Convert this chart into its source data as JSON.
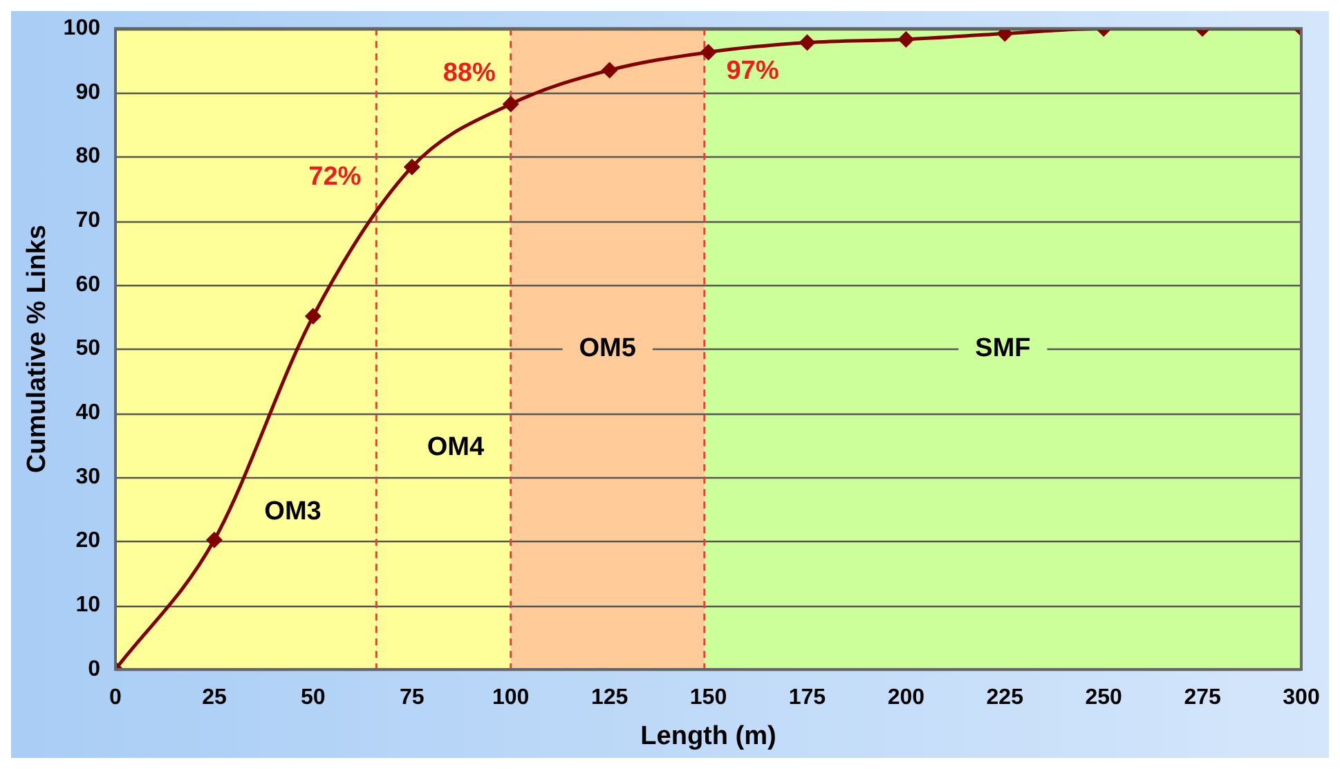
{
  "chart_data": {
    "type": "line",
    "xlabel": "Length (m)",
    "ylabel": "Cumulative % Links",
    "x": [
      0,
      25,
      50,
      75,
      100,
      125,
      150,
      175,
      200,
      225,
      250,
      275,
      300
    ],
    "series": [
      {
        "color": "#800000",
        "values": [
          0,
          20.2,
          55.1,
          78.4,
          88.2,
          93.5,
          96.3,
          97.8,
          98.3,
          99.2,
          100,
          100,
          100
        ]
      }
    ],
    "xlim": [
      0,
      300
    ],
    "xticks": [
      0,
      25,
      50,
      75,
      100,
      125,
      150,
      175,
      200,
      225,
      250,
      275,
      300
    ],
    "ylim": [
      0,
      100
    ],
    "yticks": [
      0,
      10,
      20,
      30,
      40,
      50,
      60,
      70,
      80,
      90,
      100
    ],
    "grid": "y",
    "marker": "diamond",
    "legend": false,
    "bands": [
      {
        "axis": "x",
        "from": 0,
        "to": 66,
        "label": "OM3",
        "color": "#ffff99"
      },
      {
        "axis": "x",
        "from": 66,
        "to": 100,
        "label": "OM4",
        "color": "#ffff99"
      },
      {
        "axis": "x",
        "from": 100,
        "to": 149,
        "label": "OM5",
        "color": "#ffcc99"
      },
      {
        "axis": "x",
        "from": 149,
        "to": 300,
        "label": "SMF",
        "color": "#ccff99"
      }
    ],
    "ref_lines": [
      {
        "axis": "x",
        "value": 66,
        "color": "#ff3333",
        "line_style": "dashed"
      },
      {
        "axis": "x",
        "value": 100,
        "color": "#ff3333",
        "line_style": "dashed"
      },
      {
        "axis": "x",
        "value": 149,
        "color": "#ff3333",
        "line_style": "dashed"
      }
    ],
    "annotations": [
      {
        "text": "72%",
        "x": 66,
        "y": 72
      },
      {
        "text": "88%",
        "x": 100,
        "y": 88.2
      },
      {
        "text": "97%",
        "x": 150,
        "y": 96.3
      }
    ]
  }
}
